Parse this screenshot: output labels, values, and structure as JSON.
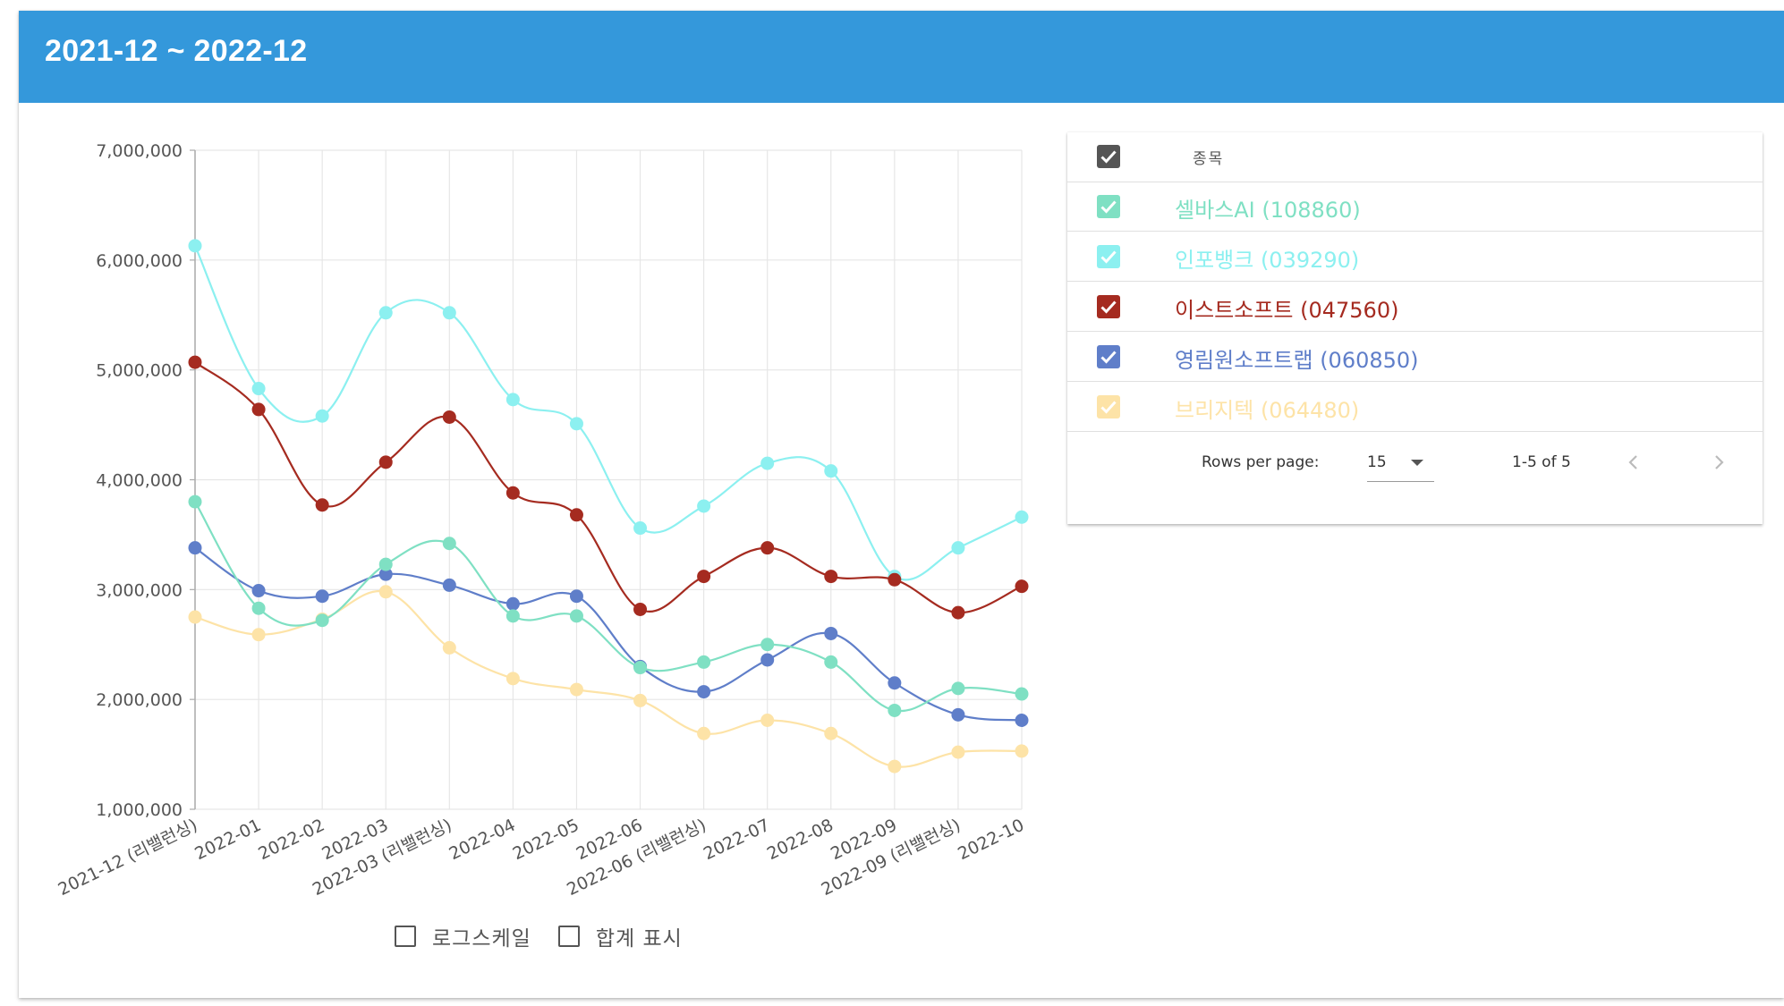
{
  "header": {
    "title": "2021-12 ~ 2022-12"
  },
  "chart_data": {
    "type": "line",
    "categories": [
      "2021-12 (리밸런싱)",
      "2022-01",
      "2022-02",
      "2022-03",
      "2022-03 (리밸런싱)",
      "2022-04",
      "2022-05",
      "2022-06",
      "2022-06 (리밸런싱)",
      "2022-07",
      "2022-08",
      "2022-09",
      "2022-09 (리밸런싱)",
      "2022-10"
    ],
    "ylim": [
      1000000,
      7000000
    ],
    "yticks": [
      1000000,
      2000000,
      3000000,
      4000000,
      5000000,
      6000000,
      7000000
    ],
    "ytick_labels": [
      "1,000,000",
      "2,000,000",
      "3,000,000",
      "4,000,000",
      "5,000,000",
      "6,000,000",
      "7,000,000"
    ],
    "grid": true,
    "series": [
      {
        "name": "셀바스AI (108860)",
        "color": "#7fe0c3",
        "values": [
          3800000,
          2830000,
          2720000,
          3230000,
          3420000,
          2760000,
          2760000,
          2290000,
          2340000,
          2500000,
          2340000,
          1900000,
          2100000,
          2050000
        ]
      },
      {
        "name": "인포뱅크 (039290)",
        "color": "#8cf0f0",
        "values": [
          6130000,
          4830000,
          4580000,
          5520000,
          5520000,
          4730000,
          4510000,
          3560000,
          3760000,
          4150000,
          4080000,
          3120000,
          3380000,
          3660000
        ]
      },
      {
        "name": "이스트소프트 (047560)",
        "color": "#a52b20",
        "values": [
          5070000,
          4640000,
          3770000,
          4160000,
          4570000,
          3880000,
          3680000,
          2820000,
          3120000,
          3380000,
          3120000,
          3090000,
          2790000,
          3030000
        ]
      },
      {
        "name": "영림원소프트랩 (060850)",
        "color": "#5f7ec9",
        "values": [
          3380000,
          2990000,
          2940000,
          3140000,
          3040000,
          2870000,
          2940000,
          2300000,
          2070000,
          2360000,
          2600000,
          2150000,
          1860000,
          1810000
        ]
      },
      {
        "name": "브리지텍 (064480)",
        "color": "#fde3a7",
        "values": [
          2750000,
          2590000,
          2730000,
          2980000,
          2470000,
          2190000,
          2090000,
          1990000,
          1690000,
          1810000,
          1690000,
          1390000,
          1520000,
          1530000
        ]
      }
    ]
  },
  "options": {
    "log_scale_label": "로그스케일",
    "sum_label": "합계 표시"
  },
  "table": {
    "column_header": "종목",
    "header_checkbox_color": "#555555",
    "rows": [
      {
        "label": "셀바스AI (108860)",
        "color": "#7fe0c3",
        "checked": true
      },
      {
        "label": "인포뱅크 (039290)",
        "color": "#8cf0f0",
        "checked": true
      },
      {
        "label": "이스트소프트 (047560)",
        "color": "#a52b20",
        "checked": true
      },
      {
        "label": "영림원소프트랩 (060850)",
        "color": "#5f7ec9",
        "checked": true
      },
      {
        "label": "브리지텍 (064480)",
        "color": "#fde3a7",
        "checked": true
      }
    ],
    "footer": {
      "rows_per_page_label": "Rows per page:",
      "rows_per_page_value": "15",
      "range_text": "1-5 of 5"
    }
  }
}
